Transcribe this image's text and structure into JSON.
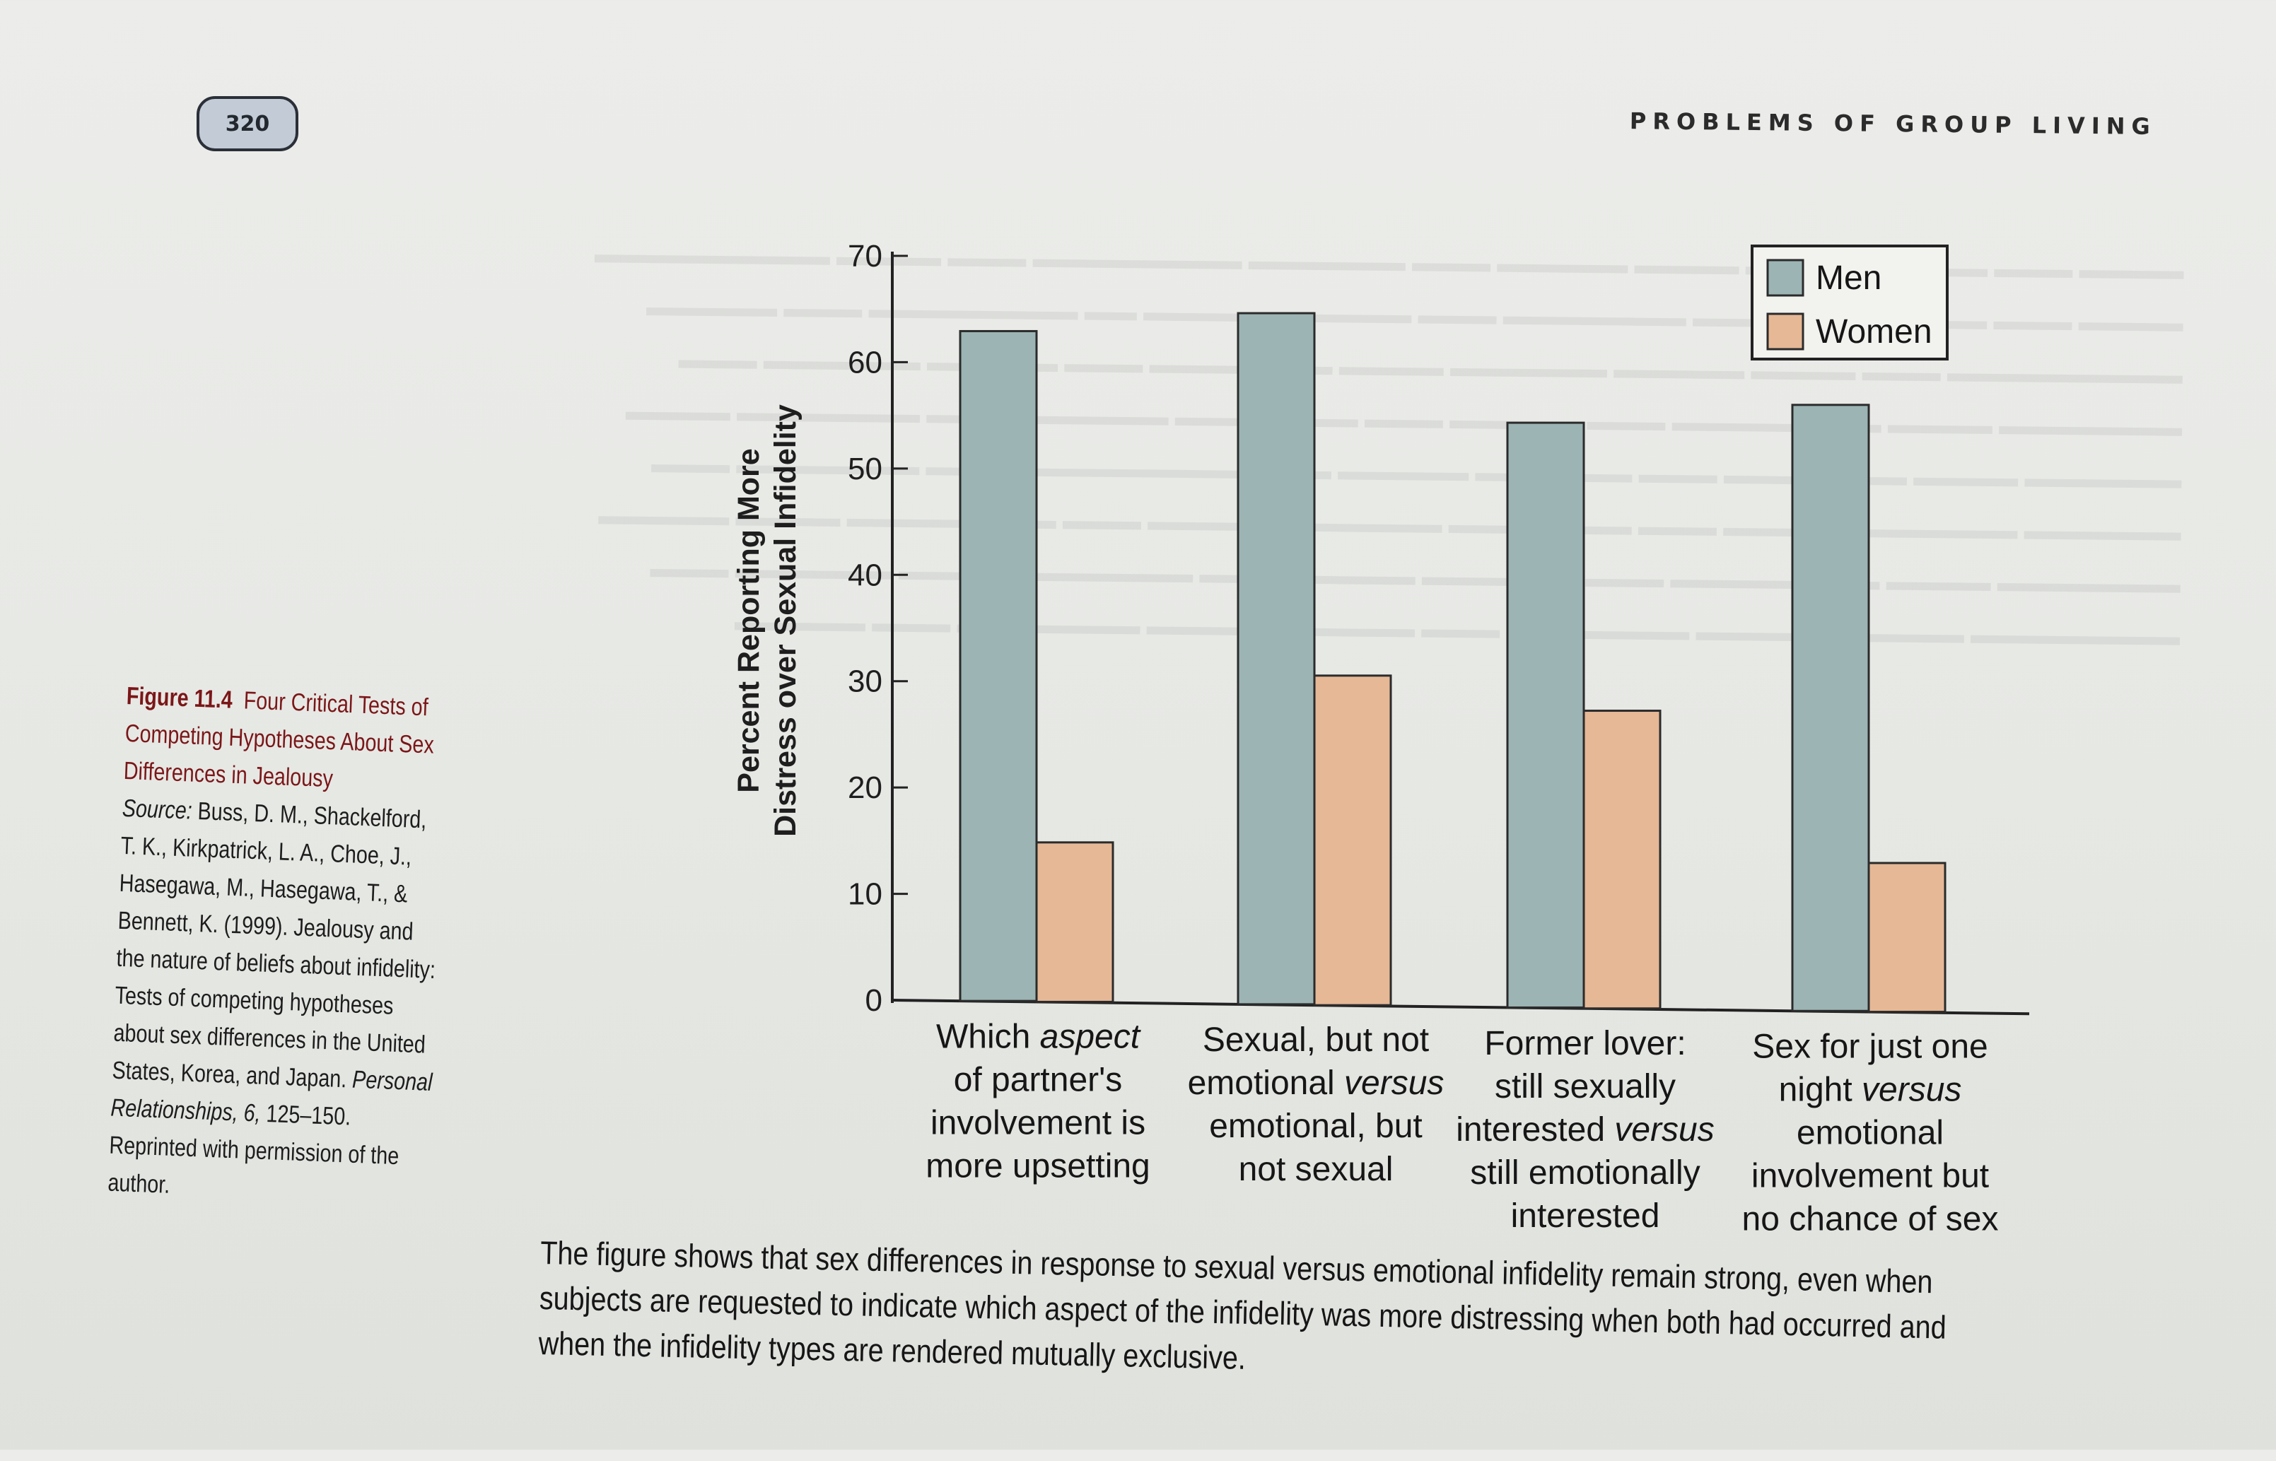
{
  "page": {
    "number": "320",
    "running_head": "PROBLEMS OF GROUP LIVING"
  },
  "figure": {
    "label": "Figure 11.4",
    "title": "Four Critical Tests of Competing Hypotheses About Sex Differences in Jealousy",
    "source_label": "Source:",
    "source_authors": "Buss, D. M., Shackelford, T. K., Kirkpatrick, L. A., Choe, J., Hasegawa, M., Hasegawa, T., & Bennett, K. (1999). Jealousy and the nature of beliefs about infidelity: Tests of competing hypotheses about sex differences in the United States, Korea, and Japan.",
    "source_journal": "Personal Relationships, 6,",
    "source_pages": " 125–150.",
    "permission": "Reprinted with permission of the author."
  },
  "caption": "The figure shows that sex differences in response to sexual versus emotional infidelity remain strong, even when subjects are requested to indicate which aspect of the infidelity was more distressing when both had occurred and when the infidelity types are rendered mutually exclusive.",
  "chart_data": {
    "type": "bar",
    "title": "",
    "ylabel": "Percent Reporting More Distress over Sexual Infidelity",
    "xlabel": "",
    "ylim": [
      0,
      70
    ],
    "yticks": [
      "0",
      "10",
      "20",
      "30",
      "40",
      "50",
      "60",
      "70"
    ],
    "categories": [
      [
        "Which ",
        "aspect",
        " of partner's involvement is more upsetting"
      ],
      [
        "Sexual, but not emotional ",
        "versus",
        " emotional, but not sexual"
      ],
      [
        "Former lover: still sexually interested ",
        "versus",
        " still emotionally interested"
      ],
      [
        "Sex for just one night ",
        "versus",
        " emotional involvement but no chance of sex"
      ]
    ],
    "category_lines": [
      [
        [
          "Which ",
          "aspect"
        ],
        [
          "of partner's"
        ],
        [
          "involvement is"
        ],
        [
          "more upsetting"
        ]
      ],
      [
        [
          "Sexual, but not"
        ],
        [
          "emotional ",
          "versus"
        ],
        [
          "emotional, but"
        ],
        [
          "not sexual"
        ]
      ],
      [
        [
          "Former lover:"
        ],
        [
          "still sexually"
        ],
        [
          "interested ",
          "versus"
        ],
        [
          "still emotionally"
        ],
        [
          "interested"
        ]
      ],
      [
        [
          "Sex for just one"
        ],
        [
          "night ",
          "versus"
        ],
        [
          "emotional"
        ],
        [
          "involvement but"
        ],
        [
          "no chance of sex"
        ]
      ]
    ],
    "series": [
      {
        "name": "Men",
        "values": [
          63,
          65,
          55,
          57
        ],
        "color": "#9db4b4"
      },
      {
        "name": "Women",
        "values": [
          15,
          31,
          28,
          14
        ],
        "color": "#e6b896"
      }
    ],
    "legend_position": "top-right",
    "grid": false
  }
}
